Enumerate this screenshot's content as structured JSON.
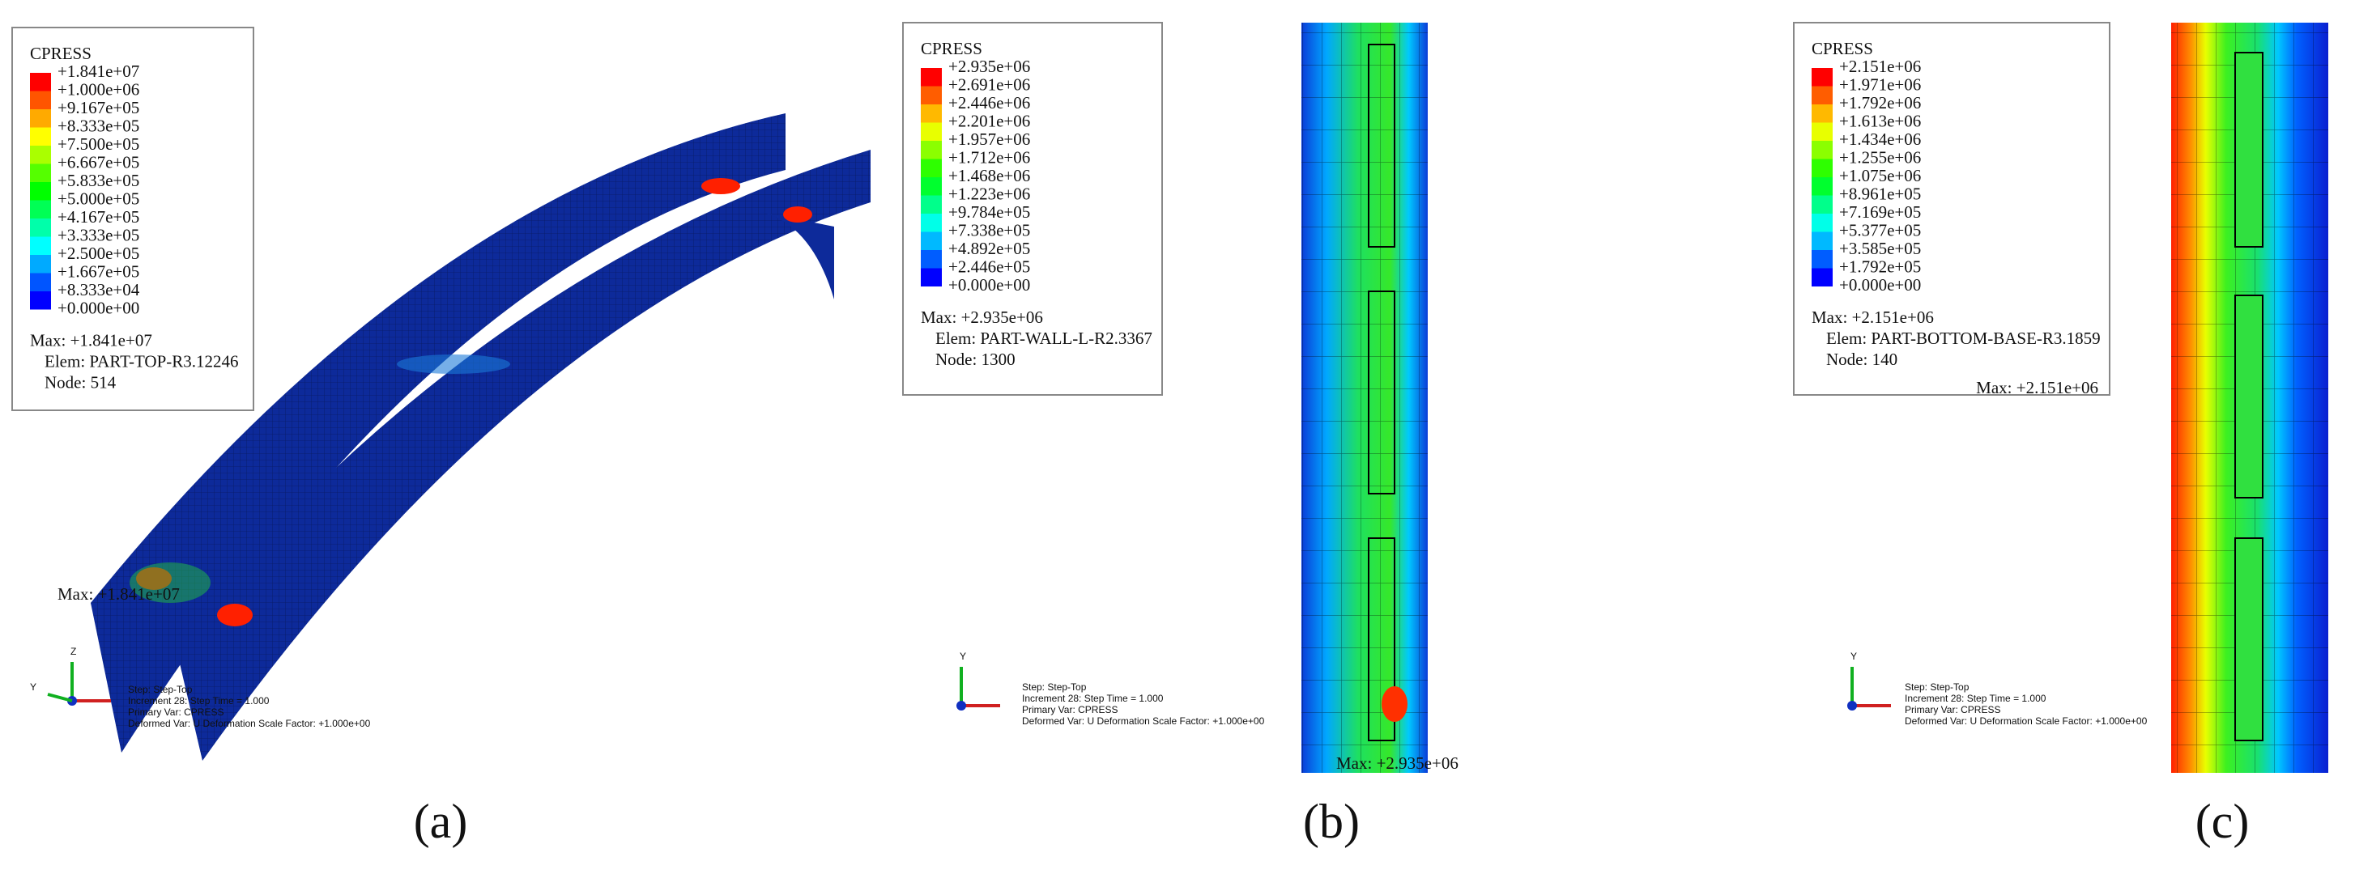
{
  "panels": [
    {
      "caption": "(a)",
      "legend": {
        "title": "CPRESS",
        "levels": [
          "+1.841e+07",
          "+1.000e+06",
          "+9.167e+05",
          "+8.333e+05",
          "+7.500e+05",
          "+6.667e+05",
          "+5.833e+05",
          "+5.000e+05",
          "+4.167e+05",
          "+3.333e+05",
          "+2.500e+05",
          "+1.667e+05",
          "+8.333e+04",
          "+0.000e+00"
        ],
        "max": "Max: +1.841e+07",
        "elem": "Elem: PART-TOP-R3.12246",
        "node": "Node: 514"
      },
      "max_label": "Max: +1.841e+07",
      "info": [
        "Step: Step-Top",
        "Increment 28: Step Time = 1.000",
        "Primary Var: CPRESS",
        "Deformed Var: U  Deformation Scale Factor: +1.000e+00"
      ],
      "axes": {
        "up": "Z",
        "left": "Y"
      }
    },
    {
      "caption": "(b)",
      "legend": {
        "title": "CPRESS",
        "levels": [
          "+2.935e+06",
          "+2.691e+06",
          "+2.446e+06",
          "+2.201e+06",
          "+1.957e+06",
          "+1.712e+06",
          "+1.468e+06",
          "+1.223e+06",
          "+9.784e+05",
          "+7.338e+05",
          "+4.892e+05",
          "+2.446e+05",
          "+0.000e+00"
        ],
        "max": "Max: +2.935e+06",
        "elem": "Elem: PART-WALL-L-R2.3367",
        "node": "Node: 1300"
      },
      "max_label": "Max: +2.935e+06",
      "info": [
        "Step: Step-Top",
        "Increment 28: Step Time = 1.000",
        "Primary Var: CPRESS",
        "Deformed Var: U  Deformation Scale Factor: +1.000e+00"
      ],
      "axes": {
        "up": "Y"
      }
    },
    {
      "caption": "(c)",
      "legend": {
        "title": "CPRESS",
        "levels": [
          "+2.151e+06",
          "+1.971e+06",
          "+1.792e+06",
          "+1.613e+06",
          "+1.434e+06",
          "+1.255e+06",
          "+1.075e+06",
          "+8.961e+05",
          "+7.169e+05",
          "+5.377e+05",
          "+3.585e+05",
          "+1.792e+05",
          "+0.000e+00"
        ],
        "max": "Max: +2.151e+06",
        "elem": "Elem: PART-BOTTOM-BASE-R3.1859",
        "node": "Node: 140"
      },
      "max_label": "Max: +2.151e+06",
      "info": [
        "Step: Step-Top",
        "Increment 28: Step Time = 1.000",
        "Primary Var: CPRESS",
        "Deformed Var: U  Deformation Scale Factor: +1.000e+00"
      ],
      "axes": {
        "up": "Y"
      }
    }
  ]
}
